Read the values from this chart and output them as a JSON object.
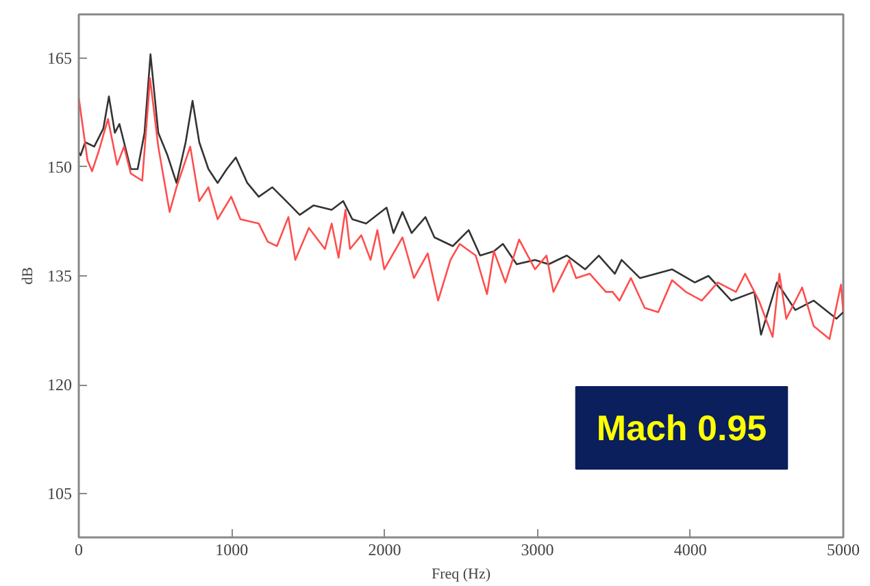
{
  "chart_data": {
    "type": "line",
    "xlabel": "Freq (Hz)",
    "ylabel": "dB",
    "xlim": [
      0,
      5000
    ],
    "ylim": [
      99,
      171
    ],
    "xticks": [
      0,
      1000,
      2000,
      3000,
      4000,
      5000
    ],
    "yticks": [
      105,
      120,
      135,
      150,
      165
    ],
    "grid": false,
    "marker": "none",
    "line_style": "solid",
    "annotations": [
      "Mach 0.95"
    ],
    "series": [
      {
        "color": "#333333",
        "x": [
          0,
          12,
          42,
          101,
          161,
          197,
          236,
          266,
          340,
          385,
          430,
          469,
          520,
          580,
          639,
          699,
          744,
          788,
          848,
          908,
          968,
          1027,
          1102,
          1177,
          1266,
          1356,
          1445,
          1535,
          1654,
          1729,
          1789,
          1879,
          2013,
          2058,
          2117,
          2177,
          2267,
          2326,
          2446,
          2550,
          2625,
          2715,
          2774,
          2864,
          2984,
          3073,
          3192,
          3312,
          3401,
          3506,
          3550,
          3670,
          3880,
          4029,
          4118,
          4268,
          4418,
          4462,
          4566,
          4686,
          4806,
          4955,
          5000
        ],
        "values": [
          152,
          151.6,
          153.4,
          152.8,
          155.3,
          159.7,
          154.7,
          155.9,
          149.7,
          149.7,
          154.7,
          165.5,
          154.7,
          151.6,
          147.8,
          153.4,
          159.1,
          153.4,
          149.7,
          147.8,
          149.7,
          151.3,
          147.8,
          145.9,
          147.2,
          145.3,
          143.4,
          144.7,
          144.1,
          145.3,
          142.8,
          142.2,
          144.4,
          140.9,
          143.8,
          140.9,
          143.1,
          140.3,
          139.1,
          141.3,
          137.8,
          138.4,
          139.4,
          136.6,
          137.2,
          136.6,
          137.8,
          135.9,
          137.8,
          135.3,
          137.2,
          134.7,
          135.9,
          134.1,
          135,
          131.6,
          132.8,
          126.9,
          134.1,
          130.3,
          131.6,
          129.1,
          130
        ]
      },
      {
        "color": "#ff4d4d",
        "x": [
          0,
          57,
          87,
          131,
          191,
          251,
          296,
          340,
          415,
          466,
          520,
          594,
          639,
          729,
          788,
          848,
          908,
          997,
          1057,
          1177,
          1236,
          1296,
          1371,
          1416,
          1505,
          1610,
          1654,
          1699,
          1744,
          1774,
          1848,
          1908,
          1953,
          1998,
          2117,
          2192,
          2282,
          2350,
          2431,
          2491,
          2596,
          2670,
          2715,
          2790,
          2880,
          2984,
          3059,
          3104,
          3208,
          3253,
          3342,
          3447,
          3491,
          3536,
          3611,
          3701,
          3790,
          3880,
          3970,
          4074,
          4179,
          4298,
          4358,
          4448,
          4538,
          4582,
          4627,
          4731,
          4806,
          4910,
          4985,
          5000
        ],
        "values": [
          159.5,
          150.9,
          149.4,
          152.2,
          156.6,
          150.3,
          152.8,
          149.1,
          148.1,
          162.2,
          152.8,
          143.8,
          147.2,
          152.8,
          145.3,
          147.2,
          142.8,
          145.9,
          142.8,
          142.2,
          139.7,
          139.1,
          143.1,
          137.2,
          141.6,
          138.7,
          142.2,
          137.5,
          144.1,
          138.7,
          140.6,
          137.2,
          141.3,
          135.9,
          140.3,
          134.7,
          138.1,
          131.6,
          137.2,
          139.4,
          137.8,
          132.5,
          138.4,
          134.1,
          140,
          135.9,
          137.8,
          132.8,
          137.2,
          134.7,
          135.3,
          132.8,
          132.8,
          131.6,
          134.7,
          130.6,
          130,
          134.4,
          132.8,
          131.6,
          134.1,
          132.8,
          135.3,
          131.6,
          126.6,
          135.3,
          129.1,
          133.4,
          128.1,
          126.3,
          133.8,
          130
        ]
      }
    ]
  }
}
